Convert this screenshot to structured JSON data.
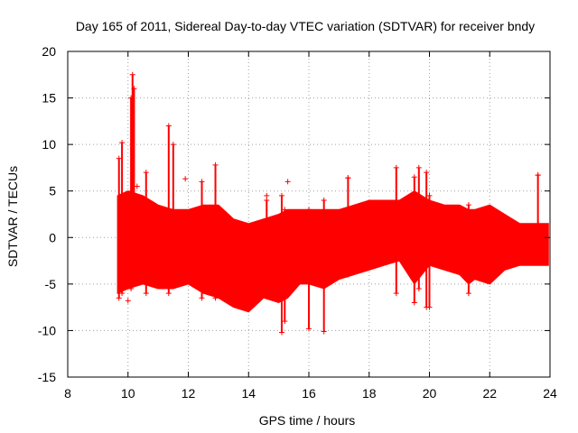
{
  "chart_data": {
    "type": "scatter",
    "title": "Day 165 of 2011, Sidereal Day-to-day VTEC variation (SDTVAR) for receiver bndy",
    "xlabel": "GPS time / hours",
    "ylabel": "SDTVAR / TECUs",
    "xlim": [
      8,
      24
    ],
    "ylim": [
      -15,
      20
    ],
    "xticks": [
      "8",
      "10",
      "12",
      "14",
      "16",
      "18",
      "20",
      "22",
      "24"
    ],
    "yticks": [
      "-15",
      "-10",
      "-5",
      "0",
      "5",
      "10",
      "15",
      "20"
    ],
    "grid": true,
    "marker": "+",
    "color": "#ff0000",
    "series": [
      {
        "name": "SDTVAR",
        "band": [
          {
            "x": 9.65,
            "lo": -6.0,
            "hi": 4.5
          },
          {
            "x": 10.0,
            "lo": -5.5,
            "hi": 5.0
          },
          {
            "x": 10.5,
            "lo": -5.0,
            "hi": 4.5
          },
          {
            "x": 11.0,
            "lo": -5.5,
            "hi": 3.5
          },
          {
            "x": 11.5,
            "lo": -5.5,
            "hi": 3.0
          },
          {
            "x": 12.0,
            "lo": -5.0,
            "hi": 3.0
          },
          {
            "x": 12.5,
            "lo": -6.0,
            "hi": 3.5
          },
          {
            "x": 13.0,
            "lo": -6.5,
            "hi": 3.5
          },
          {
            "x": 13.5,
            "lo": -7.5,
            "hi": 2.0
          },
          {
            "x": 14.0,
            "lo": -8.0,
            "hi": 1.5
          },
          {
            "x": 14.5,
            "lo": -6.5,
            "hi": 2.0
          },
          {
            "x": 15.0,
            "lo": -7.0,
            "hi": 2.5
          },
          {
            "x": 15.3,
            "lo": -6.5,
            "hi": 3.0
          },
          {
            "x": 15.7,
            "lo": -5.0,
            "hi": 3.0
          },
          {
            "x": 16.0,
            "lo": -5.0,
            "hi": 3.0
          },
          {
            "x": 16.5,
            "lo": -5.5,
            "hi": 3.0
          },
          {
            "x": 17.0,
            "lo": -4.5,
            "hi": 3.0
          },
          {
            "x": 17.5,
            "lo": -4.0,
            "hi": 3.5
          },
          {
            "x": 18.0,
            "lo": -3.5,
            "hi": 4.0
          },
          {
            "x": 18.5,
            "lo": -3.0,
            "hi": 4.0
          },
          {
            "x": 19.0,
            "lo": -2.5,
            "hi": 4.0
          },
          {
            "x": 19.5,
            "lo": -5.0,
            "hi": 5.0
          },
          {
            "x": 20.0,
            "lo": -3.0,
            "hi": 4.0
          },
          {
            "x": 20.5,
            "lo": -3.5,
            "hi": 3.5
          },
          {
            "x": 21.0,
            "lo": -4.0,
            "hi": 3.5
          },
          {
            "x": 21.3,
            "lo": -5.0,
            "hi": 3.0
          },
          {
            "x": 21.5,
            "lo": -4.5,
            "hi": 3.0
          },
          {
            "x": 22.0,
            "lo": -5.0,
            "hi": 3.5
          },
          {
            "x": 22.5,
            "lo": -3.5,
            "hi": 2.5
          },
          {
            "x": 23.0,
            "lo": -3.0,
            "hi": 1.5
          },
          {
            "x": 23.5,
            "lo": -3.0,
            "hi": 1.5
          },
          {
            "x": 23.95,
            "lo": -3.0,
            "hi": 1.5
          }
        ],
        "spikes": [
          {
            "x": 9.7,
            "lo": -6.5,
            "hi": 8.5
          },
          {
            "x": 9.8,
            "lo": -6.0,
            "hi": 10.2
          },
          {
            "x": 10.1,
            "lo": -5.5,
            "hi": 15.0
          },
          {
            "x": 10.15,
            "lo": -4.0,
            "hi": 17.5
          },
          {
            "x": 10.2,
            "lo": -4.0,
            "hi": 16.0
          },
          {
            "x": 10.6,
            "lo": -6.0,
            "hi": 7.0
          },
          {
            "x": 11.35,
            "lo": -6.0,
            "hi": 12.0
          },
          {
            "x": 11.5,
            "lo": -5.0,
            "hi": 10.0
          },
          {
            "x": 12.45,
            "lo": -6.5,
            "hi": 6.0
          },
          {
            "x": 12.9,
            "lo": -6.5,
            "hi": 7.8
          },
          {
            "x": 14.6,
            "lo": -6.0,
            "hi": 4.0
          },
          {
            "x": 15.1,
            "lo": -10.2,
            "hi": 4.5
          },
          {
            "x": 15.2,
            "lo": -9.0,
            "hi": 3.0
          },
          {
            "x": 16.0,
            "lo": -9.8,
            "hi": 3.0
          },
          {
            "x": 16.5,
            "lo": -10.1,
            "hi": 4.0
          },
          {
            "x": 17.3,
            "lo": -4.0,
            "hi": 6.4
          },
          {
            "x": 18.9,
            "lo": -6.0,
            "hi": 7.5
          },
          {
            "x": 19.5,
            "lo": -7.0,
            "hi": 6.5
          },
          {
            "x": 19.65,
            "lo": -5.5,
            "hi": 7.5
          },
          {
            "x": 19.9,
            "lo": -7.5,
            "hi": 7.0
          },
          {
            "x": 20.0,
            "lo": -7.5,
            "hi": 4.5
          },
          {
            "x": 21.3,
            "lo": -6.0,
            "hi": 3.5
          },
          {
            "x": 23.6,
            "lo": 0.0,
            "hi": 6.7
          }
        ],
        "isolated": [
          {
            "x": 10.0,
            "y": -6.8
          },
          {
            "x": 10.3,
            "y": 5.5
          },
          {
            "x": 11.9,
            "y": 6.3
          },
          {
            "x": 14.6,
            "y": 4.5
          },
          {
            "x": 15.3,
            "y": 6.0
          },
          {
            "x": 17.3,
            "y": 6.4
          },
          {
            "x": 23.6,
            "y": 6.7
          }
        ]
      }
    ]
  }
}
